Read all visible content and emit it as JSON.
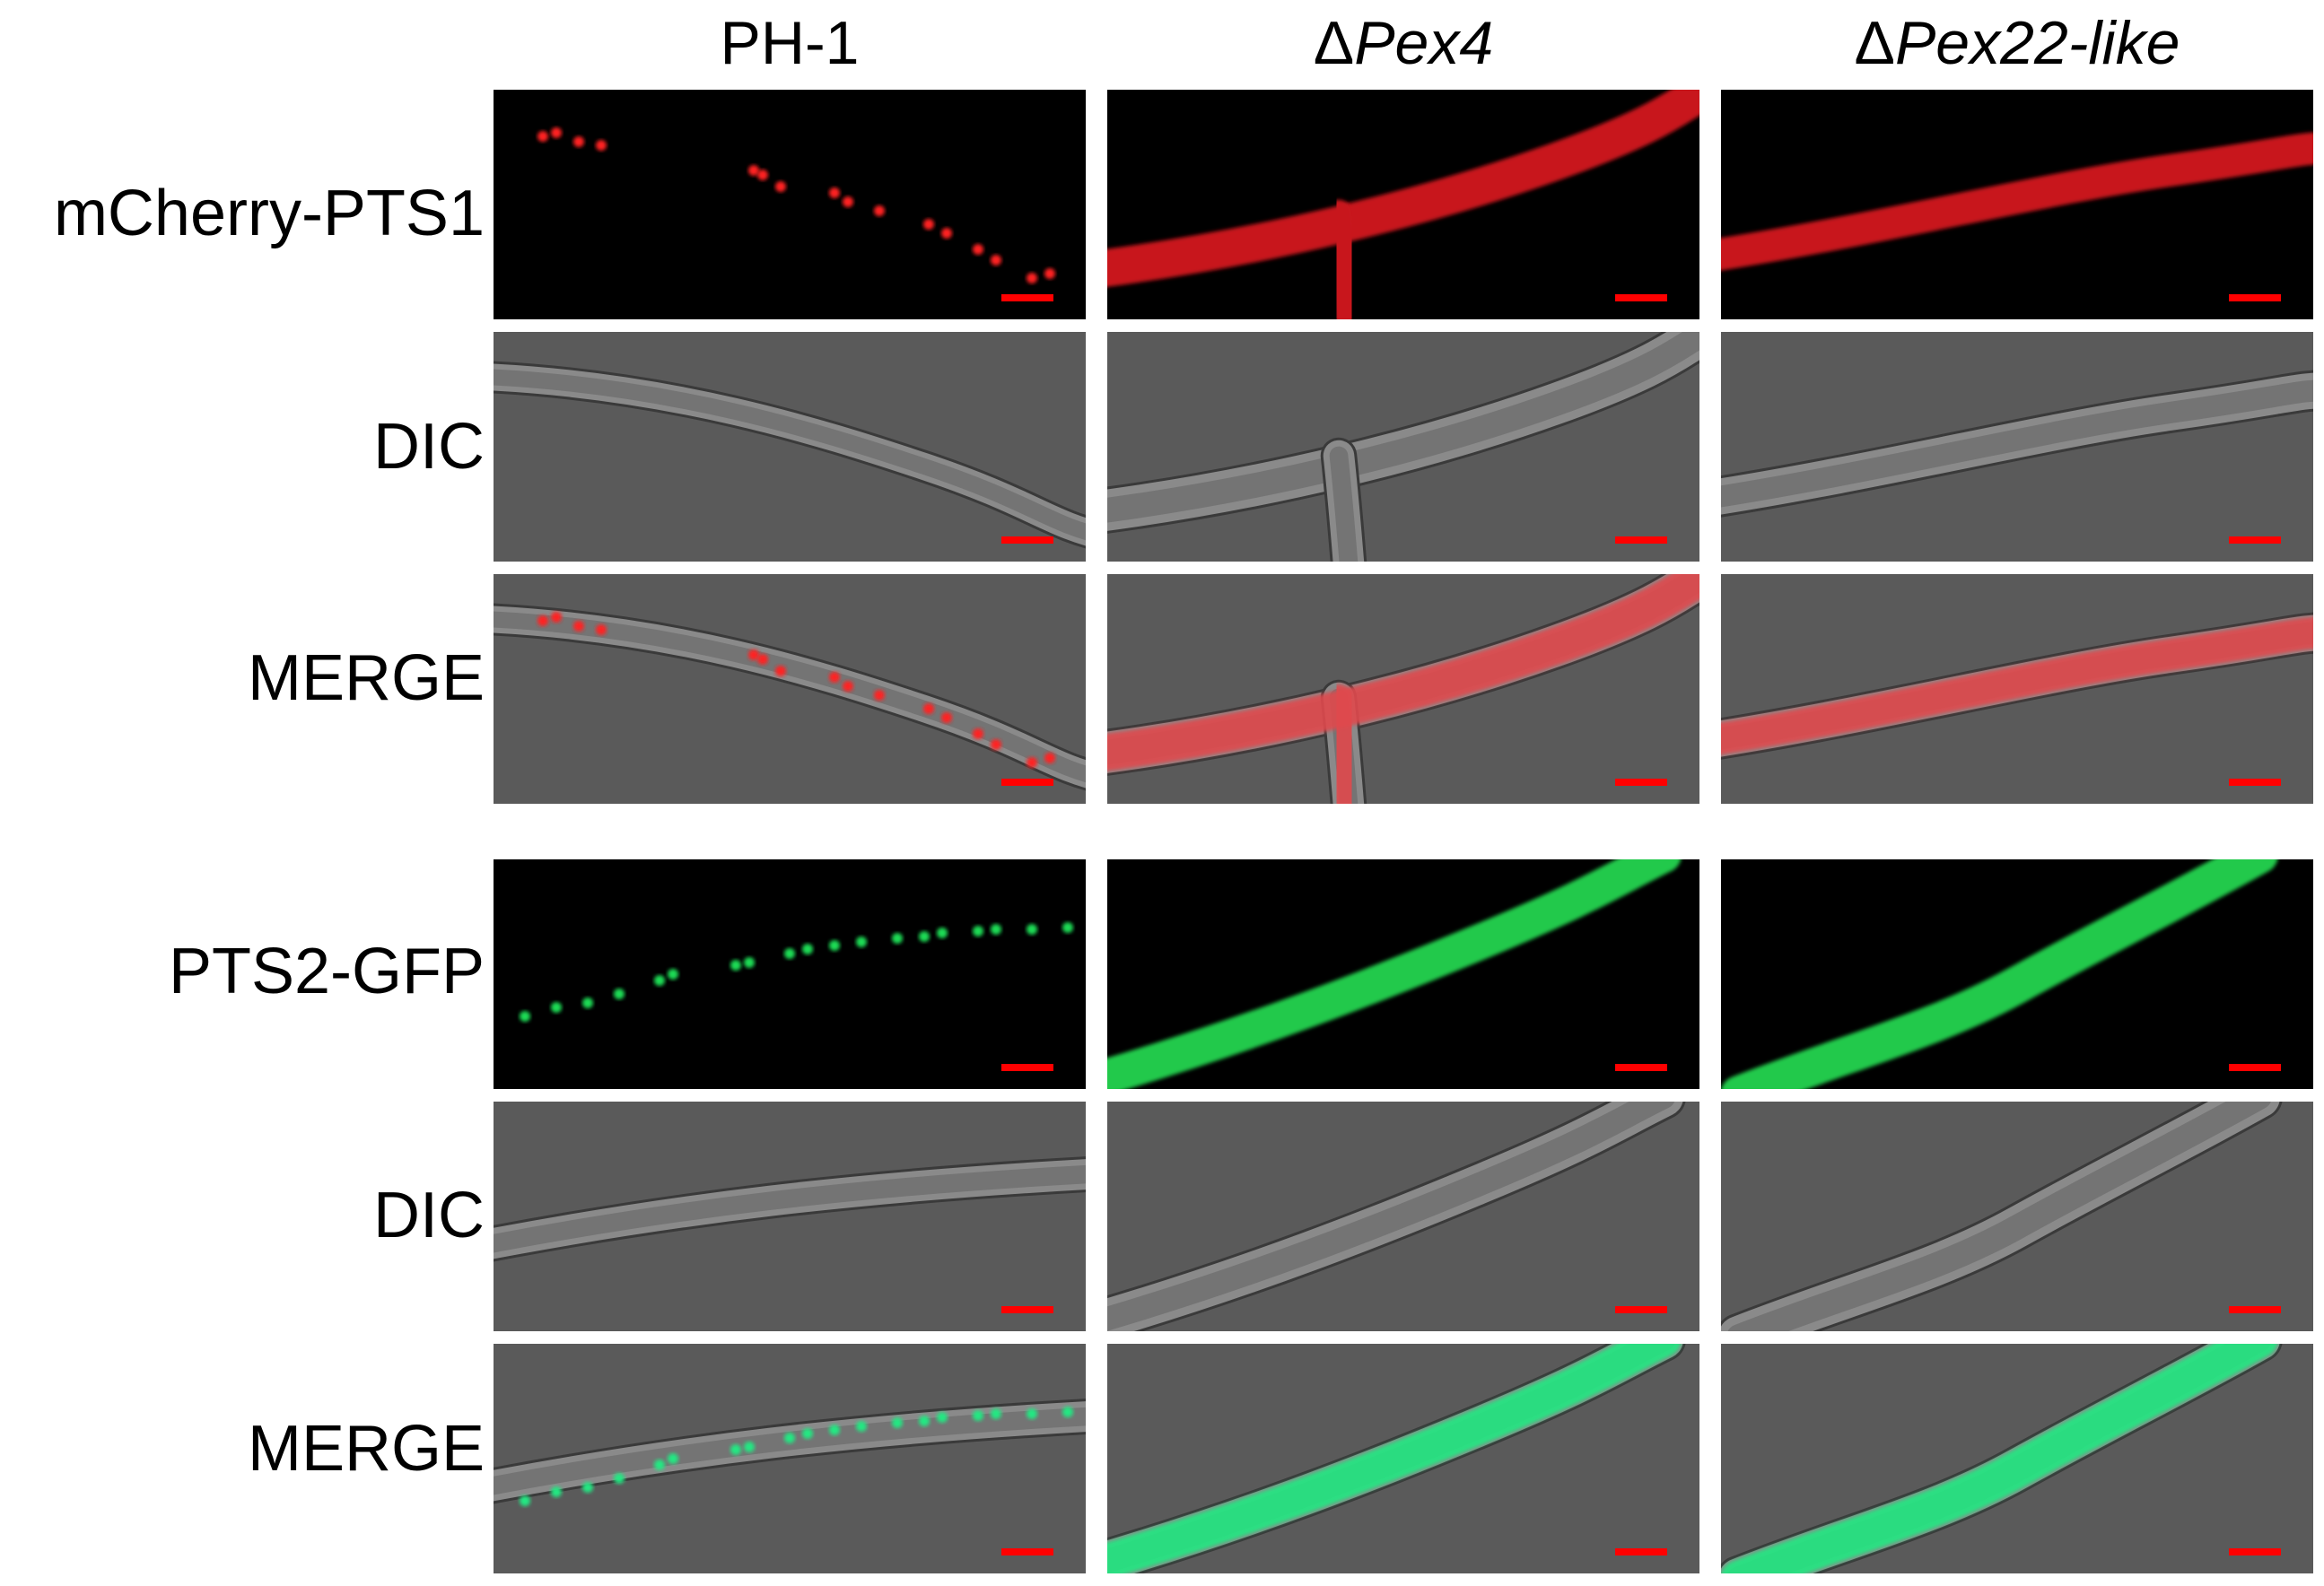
{
  "figure": {
    "columns": [
      {
        "prefix": "",
        "name": "PH-1"
      },
      {
        "prefix": "Δ",
        "name": "Pex4"
      },
      {
        "prefix": "Δ",
        "name": "Pex22-like"
      }
    ],
    "rows": [
      {
        "label": "mCherry-PTS1",
        "type": "fluor",
        "channel": "red"
      },
      {
        "label": "DIC",
        "type": "dic",
        "channel": "red"
      },
      {
        "label": "MERGE",
        "type": "merge",
        "channel": "red"
      },
      {
        "label": "PTS2-GFP",
        "type": "fluor",
        "channel": "green"
      },
      {
        "label": "DIC",
        "type": "dic",
        "channel": "green"
      },
      {
        "label": "MERGE",
        "type": "merge",
        "channel": "green"
      }
    ],
    "colors": {
      "red_signal": "#ff2020",
      "red_diffuse": "#c8141c",
      "green_signal": "#1fdc55",
      "green_diffuse": "#22c94c",
      "merge_green": "#20e882",
      "scale_bar": "#ff0000",
      "dic_background": "#5a5a5a",
      "fluor_background": "#000000"
    }
  }
}
